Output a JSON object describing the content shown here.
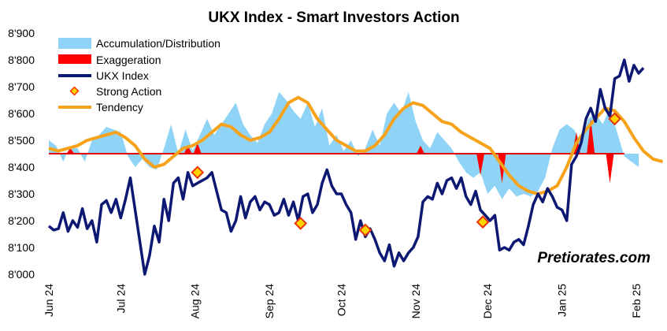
{
  "chart_data": {
    "type": "line",
    "title": "UKX Index - Smart Investors Action",
    "watermark": "Pretiorates.com",
    "ylim": [
      8000,
      8900
    ],
    "y_ticks": [
      "8'000",
      "8'100",
      "8'200",
      "8'300",
      "8'400",
      "8'500",
      "8'600",
      "8'700",
      "8'800",
      "8'900"
    ],
    "y_tick_values": [
      8000,
      8100,
      8200,
      8300,
      8400,
      8500,
      8600,
      8700,
      8800,
      8900
    ],
    "x_ticks": [
      "Jun 24",
      "Jul 24",
      "Aug 24",
      "Sep 24",
      "Oct 24",
      "Nov 24",
      "Dec 24",
      "Jan 25",
      "Feb 25"
    ],
    "x_tick_days": [
      0,
      30,
      61,
      92,
      122,
      153,
      183,
      214,
      245
    ],
    "baseline": 8450,
    "legend": [
      {
        "label": "Accumulation/Distribution",
        "kind": "area",
        "color": "#8fd3f7"
      },
      {
        "label": "Exaggeration",
        "kind": "area",
        "color": "#ff0000"
      },
      {
        "label": "UKX Index",
        "kind": "line",
        "color": "#0d1873"
      },
      {
        "label": "Strong Action",
        "kind": "marker",
        "color": "#ffd400"
      },
      {
        "label": "Tendency",
        "kind": "line",
        "color": "#f7a21b"
      }
    ],
    "series": [
      {
        "name": "UKX Index",
        "color": "#0d1873",
        "points": [
          [
            0,
            8180
          ],
          [
            2,
            8165
          ],
          [
            4,
            8170
          ],
          [
            6,
            8230
          ],
          [
            8,
            8160
          ],
          [
            10,
            8200
          ],
          [
            12,
            8175
          ],
          [
            14,
            8245
          ],
          [
            16,
            8170
          ],
          [
            18,
            8200
          ],
          [
            20,
            8120
          ],
          [
            22,
            8260
          ],
          [
            24,
            8275
          ],
          [
            26,
            8230
          ],
          [
            28,
            8280
          ],
          [
            30,
            8210
          ],
          [
            32,
            8280
          ],
          [
            34,
            8360
          ],
          [
            36,
            8240
          ],
          [
            38,
            8120
          ],
          [
            40,
            8000
          ],
          [
            42,
            8070
          ],
          [
            44,
            8180
          ],
          [
            46,
            8120
          ],
          [
            48,
            8280
          ],
          [
            50,
            8200
          ],
          [
            52,
            8340
          ],
          [
            54,
            8360
          ],
          [
            56,
            8280
          ],
          [
            58,
            8380
          ],
          [
            60,
            8330
          ],
          [
            62,
            8340
          ],
          [
            64,
            8350
          ],
          [
            66,
            8360
          ],
          [
            68,
            8380
          ],
          [
            70,
            8310
          ],
          [
            72,
            8240
          ],
          [
            74,
            8230
          ],
          [
            76,
            8160
          ],
          [
            78,
            8200
          ],
          [
            80,
            8290
          ],
          [
            82,
            8210
          ],
          [
            84,
            8270
          ],
          [
            86,
            8290
          ],
          [
            88,
            8240
          ],
          [
            90,
            8270
          ],
          [
            92,
            8260
          ],
          [
            94,
            8220
          ],
          [
            96,
            8230
          ],
          [
            98,
            8280
          ],
          [
            100,
            8220
          ],
          [
            102,
            8270
          ],
          [
            104,
            8200
          ],
          [
            106,
            8290
          ],
          [
            108,
            8300
          ],
          [
            110,
            8230
          ],
          [
            112,
            8260
          ],
          [
            114,
            8340
          ],
          [
            116,
            8390
          ],
          [
            118,
            8330
          ],
          [
            120,
            8300
          ],
          [
            122,
            8300
          ],
          [
            124,
            8260
          ],
          [
            126,
            8230
          ],
          [
            128,
            8130
          ],
          [
            130,
            8200
          ],
          [
            132,
            8140
          ],
          [
            134,
            8170
          ],
          [
            136,
            8130
          ],
          [
            138,
            8080
          ],
          [
            140,
            8050
          ],
          [
            142,
            8110
          ],
          [
            144,
            8030
          ],
          [
            146,
            8080
          ],
          [
            148,
            8050
          ],
          [
            150,
            8080
          ],
          [
            152,
            8100
          ],
          [
            154,
            8140
          ],
          [
            156,
            8270
          ],
          [
            158,
            8290
          ],
          [
            160,
            8280
          ],
          [
            162,
            8340
          ],
          [
            164,
            8300
          ],
          [
            166,
            8350
          ],
          [
            168,
            8360
          ],
          [
            170,
            8320
          ],
          [
            172,
            8360
          ],
          [
            174,
            8290
          ],
          [
            176,
            8260
          ],
          [
            178,
            8310
          ],
          [
            180,
            8240
          ],
          [
            182,
            8220
          ],
          [
            184,
            8200
          ],
          [
            186,
            8220
          ],
          [
            188,
            8090
          ],
          [
            190,
            8100
          ],
          [
            192,
            8090
          ],
          [
            194,
            8120
          ],
          [
            196,
            8130
          ],
          [
            198,
            8110
          ],
          [
            200,
            8180
          ],
          [
            202,
            8260
          ],
          [
            204,
            8300
          ],
          [
            206,
            8270
          ],
          [
            208,
            8320
          ],
          [
            210,
            8290
          ],
          [
            212,
            8250
          ],
          [
            214,
            8240
          ],
          [
            216,
            8200
          ],
          [
            218,
            8410
          ],
          [
            220,
            8440
          ],
          [
            222,
            8490
          ],
          [
            224,
            8580
          ],
          [
            226,
            8620
          ],
          [
            228,
            8570
          ],
          [
            230,
            8690
          ],
          [
            232,
            8620
          ],
          [
            234,
            8590
          ],
          [
            236,
            8730
          ],
          [
            238,
            8740
          ],
          [
            240,
            8800
          ],
          [
            242,
            8720
          ],
          [
            244,
            8780
          ],
          [
            246,
            8750
          ],
          [
            248,
            8770
          ]
        ]
      },
      {
        "name": "Tendency",
        "color": "#f7a21b",
        "points": [
          [
            0,
            8470
          ],
          [
            4,
            8460
          ],
          [
            8,
            8470
          ],
          [
            12,
            8480
          ],
          [
            16,
            8500
          ],
          [
            20,
            8510
          ],
          [
            24,
            8520
          ],
          [
            28,
            8530
          ],
          [
            32,
            8510
          ],
          [
            36,
            8480
          ],
          [
            40,
            8430
          ],
          [
            44,
            8400
          ],
          [
            48,
            8410
          ],
          [
            52,
            8440
          ],
          [
            56,
            8470
          ],
          [
            60,
            8480
          ],
          [
            64,
            8500
          ],
          [
            68,
            8530
          ],
          [
            72,
            8560
          ],
          [
            76,
            8550
          ],
          [
            80,
            8520
          ],
          [
            84,
            8500
          ],
          [
            88,
            8510
          ],
          [
            92,
            8530
          ],
          [
            96,
            8580
          ],
          [
            100,
            8640
          ],
          [
            104,
            8660
          ],
          [
            108,
            8640
          ],
          [
            112,
            8580
          ],
          [
            116,
            8540
          ],
          [
            120,
            8500
          ],
          [
            124,
            8480
          ],
          [
            128,
            8460
          ],
          [
            132,
            8460
          ],
          [
            136,
            8480
          ],
          [
            140,
            8520
          ],
          [
            144,
            8580
          ],
          [
            148,
            8620
          ],
          [
            152,
            8640
          ],
          [
            156,
            8630
          ],
          [
            160,
            8600
          ],
          [
            164,
            8570
          ],
          [
            168,
            8560
          ],
          [
            172,
            8530
          ],
          [
            176,
            8510
          ],
          [
            180,
            8490
          ],
          [
            184,
            8470
          ],
          [
            188,
            8420
          ],
          [
            192,
            8370
          ],
          [
            196,
            8330
          ],
          [
            200,
            8310
          ],
          [
            204,
            8300
          ],
          [
            208,
            8310
          ],
          [
            212,
            8330
          ],
          [
            216,
            8400
          ],
          [
            220,
            8490
          ],
          [
            224,
            8540
          ],
          [
            228,
            8580
          ],
          [
            232,
            8620
          ],
          [
            236,
            8610
          ],
          [
            240,
            8570
          ],
          [
            244,
            8510
          ],
          [
            248,
            8460
          ],
          [
            252,
            8430
          ],
          [
            256,
            8420
          ]
        ]
      },
      {
        "name": "Accumulation/Distribution",
        "color": "#8fd3f7",
        "points": [
          [
            0,
            8500
          ],
          [
            3,
            8480
          ],
          [
            6,
            8420
          ],
          [
            9,
            8480
          ],
          [
            12,
            8470
          ],
          [
            15,
            8420
          ],
          [
            18,
            8500
          ],
          [
            21,
            8520
          ],
          [
            24,
            8550
          ],
          [
            27,
            8540
          ],
          [
            30,
            8530
          ],
          [
            33,
            8440
          ],
          [
            36,
            8400
          ],
          [
            39,
            8430
          ],
          [
            42,
            8400
          ],
          [
            45,
            8390
          ],
          [
            48,
            8470
          ],
          [
            51,
            8560
          ],
          [
            54,
            8450
          ],
          [
            57,
            8540
          ],
          [
            60,
            8460
          ],
          [
            63,
            8520
          ],
          [
            66,
            8580
          ],
          [
            69,
            8520
          ],
          [
            72,
            8560
          ],
          [
            75,
            8600
          ],
          [
            78,
            8640
          ],
          [
            81,
            8560
          ],
          [
            84,
            8520
          ],
          [
            87,
            8490
          ],
          [
            90,
            8560
          ],
          [
            93,
            8600
          ],
          [
            96,
            8680
          ],
          [
            99,
            8650
          ],
          [
            102,
            8610
          ],
          [
            105,
            8580
          ],
          [
            108,
            8640
          ],
          [
            111,
            8550
          ],
          [
            114,
            8620
          ],
          [
            117,
            8480
          ],
          [
            120,
            8520
          ],
          [
            123,
            8460
          ],
          [
            126,
            8500
          ],
          [
            129,
            8440
          ],
          [
            132,
            8470
          ],
          [
            135,
            8540
          ],
          [
            138,
            8480
          ],
          [
            141,
            8600
          ],
          [
            144,
            8640
          ],
          [
            147,
            8600
          ],
          [
            150,
            8680
          ],
          [
            153,
            8570
          ],
          [
            156,
            8500
          ],
          [
            159,
            8470
          ],
          [
            162,
            8530
          ],
          [
            165,
            8500
          ],
          [
            168,
            8470
          ],
          [
            171,
            8420
          ],
          [
            174,
            8380
          ],
          [
            177,
            8360
          ],
          [
            180,
            8380
          ],
          [
            183,
            8300
          ],
          [
            186,
            8330
          ],
          [
            189,
            8280
          ],
          [
            192,
            8320
          ],
          [
            195,
            8290
          ],
          [
            198,
            8300
          ],
          [
            201,
            8290
          ],
          [
            204,
            8310
          ],
          [
            207,
            8360
          ],
          [
            210,
            8470
          ],
          [
            213,
            8540
          ],
          [
            216,
            8560
          ],
          [
            219,
            8540
          ],
          [
            222,
            8490
          ],
          [
            225,
            8580
          ],
          [
            228,
            8600
          ],
          [
            231,
            8560
          ],
          [
            234,
            8620
          ],
          [
            237,
            8530
          ],
          [
            240,
            8440
          ],
          [
            243,
            8420
          ],
          [
            246,
            8400
          ]
        ]
      },
      {
        "name": "Exaggeration",
        "color": "#ff0000",
        "spikes": [
          [
            9,
            8470
          ],
          [
            58,
            8480
          ],
          [
            62,
            8490
          ],
          [
            155,
            8480
          ],
          [
            180,
            8370
          ],
          [
            189,
            8340
          ],
          [
            220,
            8530
          ],
          [
            226,
            8580
          ],
          [
            234,
            8340
          ]
        ]
      }
    ],
    "strong_action": [
      [
        62,
        8380
      ],
      [
        105,
        8190
      ],
      [
        132,
        8165
      ],
      [
        181,
        8195
      ],
      [
        236,
        8580
      ]
    ]
  }
}
